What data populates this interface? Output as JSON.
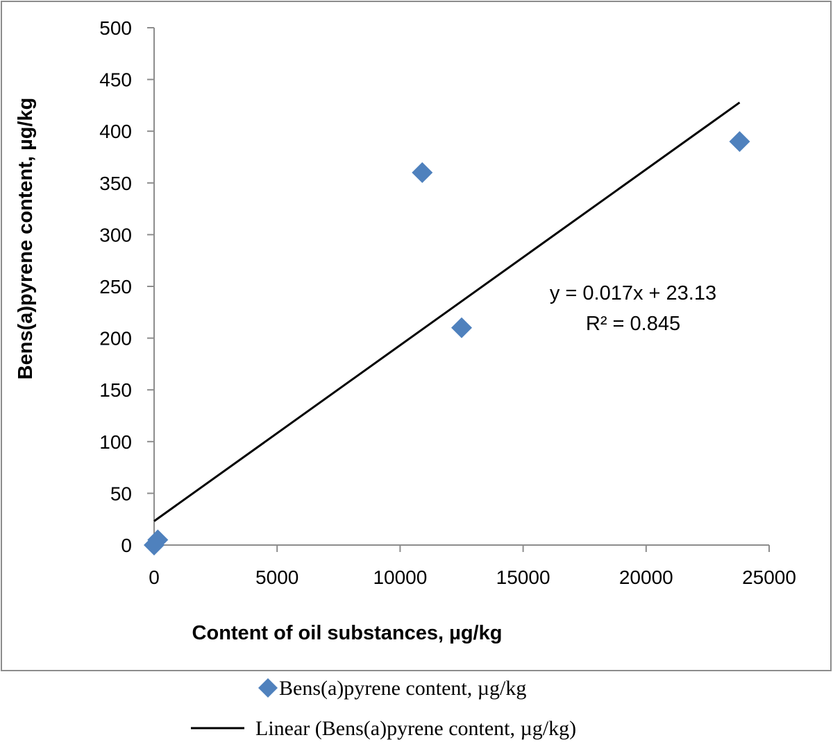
{
  "chart_data": {
    "type": "scatter",
    "xlabel": "Content of oil substances, µg/kg",
    "ylabel": "Bens(a)pyrene content, µg/kg",
    "xlim": [
      0,
      25000
    ],
    "ylim": [
      0,
      500
    ],
    "x_ticks": [
      "0",
      "5000",
      "10000",
      "15000",
      "20000",
      "25000"
    ],
    "y_ticks": [
      "0",
      "50",
      "100",
      "150",
      "200",
      "250",
      "300",
      "350",
      "400",
      "450",
      "500"
    ],
    "grid": false,
    "series": [
      {
        "name": "Bens(a)pyrene content, µg/kg",
        "marker": "diamond",
        "color": "#4F81BD",
        "points": [
          {
            "x": 0,
            "y": 0
          },
          {
            "x": 150,
            "y": 5
          },
          {
            "x": 10900,
            "y": 360
          },
          {
            "x": 12500,
            "y": 210
          },
          {
            "x": 23800,
            "y": 390
          }
        ]
      }
    ],
    "trendline": {
      "name": "Linear (Bens(a)pyrene content, µg/kg)",
      "type": "linear",
      "slope": 0.017,
      "intercept": 23.13,
      "x_range": [
        0,
        23800
      ],
      "color": "#000000"
    },
    "equation": "y = 0.017x + 23.13",
    "r_squared": "R² = 0.845",
    "legend": {
      "placement": "bottom",
      "entries": [
        "Bens(a)pyrene content, µg/kg",
        "Linear (Bens(a)pyrene content, µg/kg)"
      ]
    }
  }
}
